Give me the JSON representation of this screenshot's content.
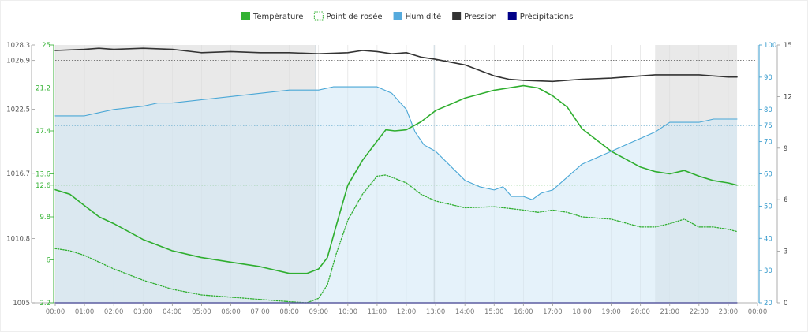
{
  "chart_data": {
    "type": "line",
    "title": "",
    "legend": [
      {
        "name": "Température",
        "color": "#33b233",
        "style": "solid-box"
      },
      {
        "name": "Point de rosée",
        "color": "#33b233",
        "style": "dotted-box"
      },
      {
        "name": "Humidité",
        "color": "#55aadd",
        "style": "solid-box"
      },
      {
        "name": "Pression",
        "color": "#333333",
        "style": "solid-box"
      },
      {
        "name": "Précipitations",
        "color": "#000088",
        "style": "solid-box"
      }
    ],
    "legend_position": "top-center",
    "x_ticks": [
      "00:00",
      "01:00",
      "02:00",
      "03:00",
      "04:00",
      "05:00",
      "06:00",
      "07:00",
      "08:00",
      "09:00",
      "10:00",
      "11:00",
      "12:00",
      "13:00",
      "14:00",
      "15:00",
      "16:00",
      "17:00",
      "18:00",
      "19:00",
      "20:00",
      "21:00",
      "22:00",
      "23:00",
      "00:00"
    ],
    "xlim": [
      0,
      24
    ],
    "axes": {
      "pressure": {
        "range": [
          1005,
          1028.3
        ],
        "ticks": [
          "1005",
          "1010.8",
          "1016.7",
          "1022.5",
          "1026.9",
          "1028.3"
        ],
        "color": "#555555"
      },
      "temperature": {
        "range": [
          2.2,
          25
        ],
        "ticks": [
          "2.2",
          "6",
          "9.8",
          "12.6",
          "13.6",
          "17.4",
          "21.2",
          "25"
        ],
        "color": "#33b233"
      },
      "humidity": {
        "range": [
          20,
          100
        ],
        "ticks": [
          "20",
          "30",
          "40",
          "50",
          "60",
          "70",
          "75",
          "80",
          "90",
          "100"
        ],
        "color": "#3399cc"
      },
      "precipitation": {
        "range": [
          0,
          15
        ],
        "ticks": [
          "0",
          "3",
          "6",
          "9",
          "12",
          "15"
        ],
        "color": "#444444"
      }
    },
    "night_shading": [
      [
        0,
        8.9
      ],
      [
        20.5,
        23.3
      ]
    ],
    "reference_lines": [
      {
        "axis": "pressure",
        "value": 1026.9
      },
      {
        "axis": "humidity",
        "value": 75
      },
      {
        "axis": "temperature",
        "value": 12.6
      },
      {
        "axis": "humidity",
        "value": 37
      }
    ],
    "vertical_markers": [
      8.9,
      12.95
    ],
    "series": [
      {
        "name": "Température",
        "axis": "temperature",
        "x": [
          0,
          0.5,
          1,
          1.5,
          2,
          3,
          4,
          5,
          6,
          7,
          8,
          8.6,
          9,
          9.3,
          9.6,
          10,
          10.5,
          11,
          11.3,
          11.6,
          12,
          12.5,
          13,
          14,
          15,
          16,
          16.5,
          17,
          17.5,
          18,
          19,
          20,
          20.5,
          21,
          21.5,
          22,
          22.5,
          23,
          23.3
        ],
        "values": [
          12.2,
          11.8,
          10.8,
          9.8,
          9.2,
          7.8,
          6.8,
          6.2,
          5.8,
          5.4,
          4.8,
          4.8,
          5.2,
          6.2,
          9,
          12.6,
          14.8,
          16.5,
          17.5,
          17.4,
          17.5,
          18.2,
          19.2,
          20.3,
          21,
          21.4,
          21.2,
          20.5,
          19.5,
          17.6,
          15.6,
          14.2,
          13.8,
          13.6,
          13.9,
          13.4,
          13,
          12.8,
          12.6
        ]
      },
      {
        "name": "Point de rosée",
        "axis": "temperature",
        "x": [
          0,
          0.5,
          1,
          1.5,
          2,
          3,
          4,
          5,
          6,
          7,
          8,
          8.6,
          9,
          9.3,
          9.6,
          10,
          10.5,
          11,
          11.3,
          11.6,
          12,
          12.5,
          13,
          14,
          15,
          16,
          16.5,
          17,
          17.5,
          18,
          19,
          20,
          20.5,
          21,
          21.5,
          22,
          22.5,
          23,
          23.3
        ],
        "values": [
          7,
          6.8,
          6.4,
          5.8,
          5.2,
          4.2,
          3.4,
          2.9,
          2.7,
          2.5,
          2.3,
          2.2,
          2.6,
          3.8,
          6.5,
          9.5,
          11.8,
          13.4,
          13.5,
          13.2,
          12.8,
          11.8,
          11.2,
          10.6,
          10.7,
          10.4,
          10.2,
          10.4,
          10.2,
          9.8,
          9.6,
          8.9,
          8.9,
          9.2,
          9.6,
          8.9,
          8.9,
          8.7,
          8.5
        ]
      },
      {
        "name": "Humidité",
        "axis": "humidity",
        "x": [
          0,
          1,
          1.5,
          2,
          3,
          3.5,
          4,
          5,
          6,
          7,
          8,
          9,
          9.5,
          10,
          11,
          11.5,
          12,
          12.3,
          12.6,
          13,
          14,
          14.5,
          15,
          15.3,
          15.6,
          16,
          16.3,
          16.6,
          17,
          17.5,
          18,
          19,
          20,
          20.5,
          21,
          22,
          22.5,
          23.3
        ],
        "values": [
          78,
          78,
          79,
          80,
          81,
          82,
          82,
          83,
          84,
          85,
          86,
          86,
          87,
          87,
          87,
          85,
          80,
          73,
          69,
          67,
          58,
          56,
          55,
          56,
          53,
          53,
          52,
          54,
          55,
          59,
          63,
          67,
          71,
          73,
          76,
          76,
          77,
          77
        ]
      },
      {
        "name": "Pression",
        "axis": "pressure",
        "x": [
          0,
          1,
          1.5,
          2,
          3,
          4,
          5,
          6,
          7,
          8,
          9,
          10,
          10.5,
          11,
          11.5,
          12,
          12.5,
          13,
          14,
          14.5,
          15,
          15.5,
          16,
          17,
          18,
          19,
          20,
          20.5,
          21,
          22,
          23,
          23.3
        ],
        "values": [
          1027.8,
          1027.9,
          1028,
          1027.9,
          1028,
          1027.9,
          1027.6,
          1027.7,
          1027.6,
          1027.6,
          1027.5,
          1027.6,
          1027.8,
          1027.7,
          1027.5,
          1027.6,
          1027.2,
          1027,
          1026.5,
          1026,
          1025.5,
          1025.2,
          1025.1,
          1025,
          1025.2,
          1025.3,
          1025.5,
          1025.6,
          1025.6,
          1025.6,
          1025.4,
          1025.4
        ]
      },
      {
        "name": "Précipitations",
        "axis": "precipitation",
        "x": [
          0,
          23.3
        ],
        "values": [
          0,
          0
        ]
      }
    ]
  }
}
